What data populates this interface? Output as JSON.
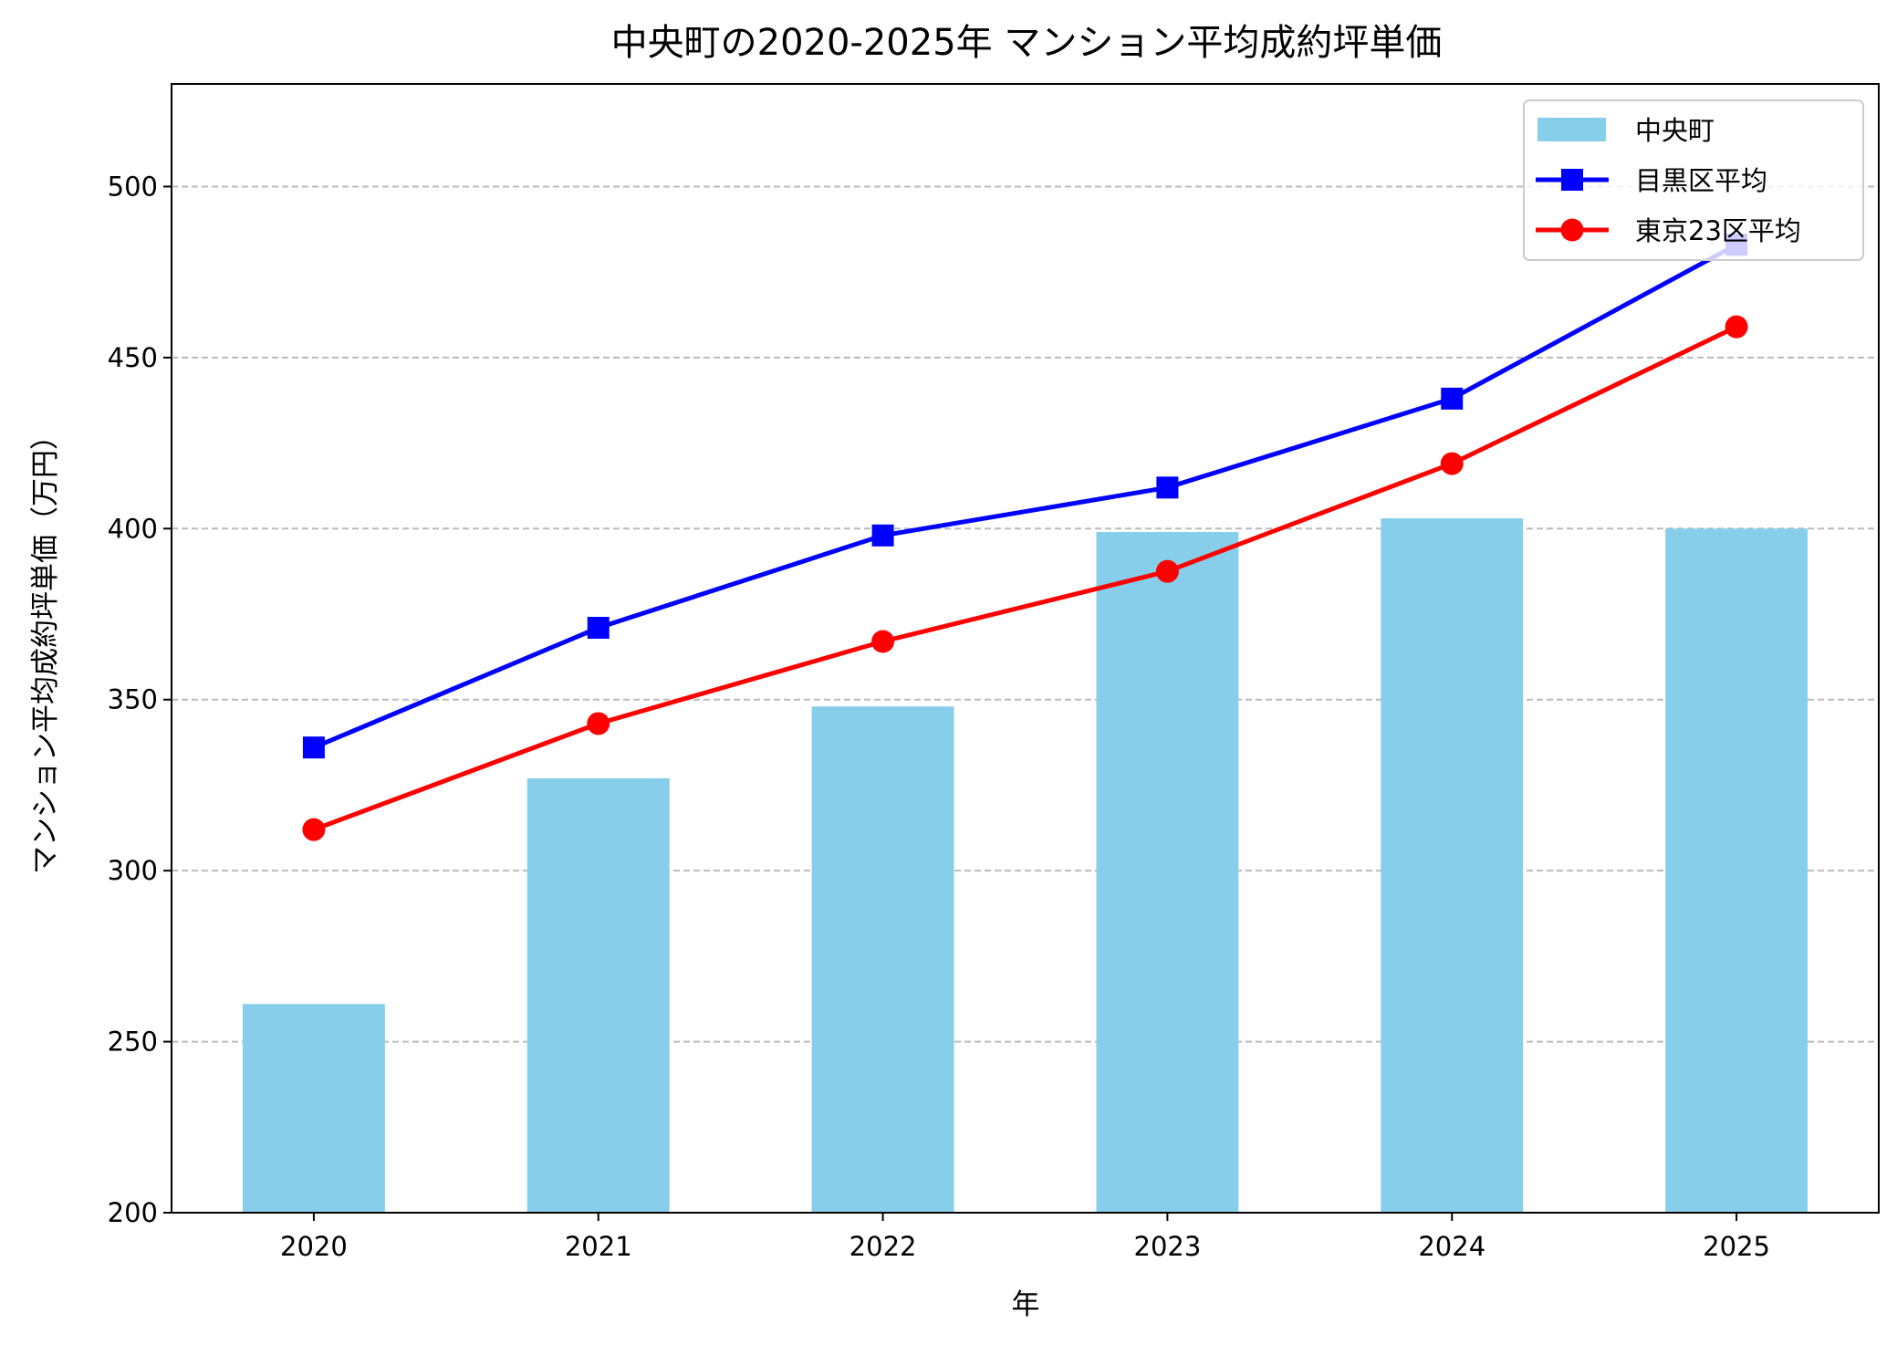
{
  "chart_data": {
    "type": "bar+line",
    "title": "中央町の2020-2025年 マンション平均成約坪単価",
    "xlabel": "年",
    "ylabel": "マンション平均成約坪単価（万円）",
    "categories": [
      "2020",
      "2021",
      "2022",
      "2023",
      "2024",
      "2025"
    ],
    "ylim": [
      200,
      530
    ],
    "yticks": [
      200,
      250,
      300,
      350,
      400,
      450,
      500
    ],
    "grid": "y-dashed",
    "legend_position": "top-right",
    "series": [
      {
        "name": "中央町",
        "kind": "bar",
        "color": "#87CEEB",
        "values": [
          261,
          327,
          348,
          399,
          403,
          400
        ]
      },
      {
        "name": "目黒区平均",
        "kind": "line",
        "marker": "square",
        "color": "#0000FF",
        "values": [
          336,
          371,
          398,
          412,
          438,
          483
        ]
      },
      {
        "name": "東京23区平均",
        "kind": "line",
        "marker": "circle",
        "color": "#FF0000",
        "values": [
          312,
          343,
          367,
          387.5,
          419,
          459
        ]
      }
    ]
  }
}
